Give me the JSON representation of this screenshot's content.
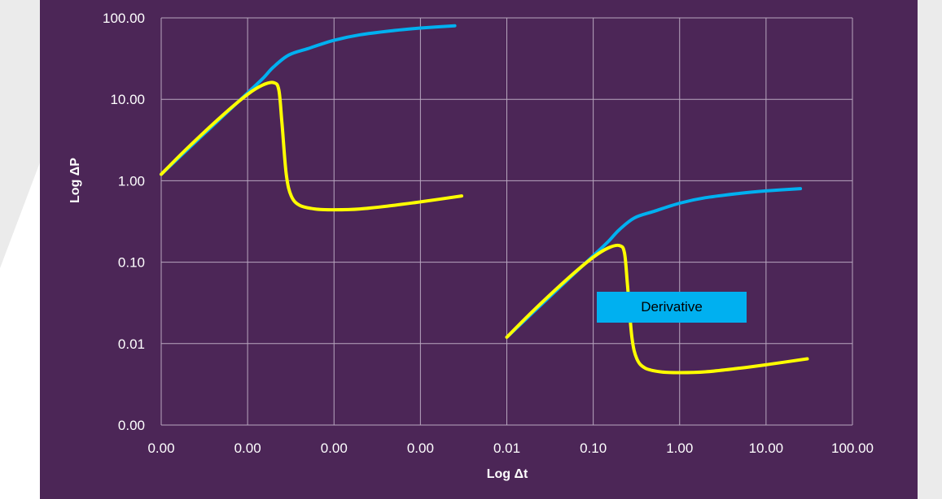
{
  "chart_data": {
    "type": "line",
    "xlabel": "Log Δt",
    "ylabel": "Log ΔP",
    "x_tick_labels": [
      "0.00",
      "0.00",
      "0.00",
      "0.00",
      "0.01",
      "0.10",
      "1.00",
      "10.00",
      "100.00"
    ],
    "y_tick_labels": [
      "100.00",
      "10.00",
      "1.00",
      "0.10",
      "0.01",
      "0.00"
    ],
    "x_scale": "log",
    "y_scale": "log",
    "grid": true,
    "annotation": "Derivative",
    "colors": {
      "background": "#4c2657",
      "pressure": "#00b0f0",
      "derivative": "#ffff00",
      "grid": "#b8a6bf"
    },
    "series": [
      {
        "key": "pressure_1",
        "color": "#00b0f0",
        "x": [
          0.01,
          0.02,
          0.05,
          0.1,
          0.15,
          0.2,
          0.3,
          0.5,
          1,
          2,
          5,
          10,
          25
        ],
        "y": [
          0.012,
          0.024,
          0.06,
          0.12,
          0.18,
          0.25,
          0.35,
          0.42,
          0.53,
          0.62,
          0.7,
          0.75,
          0.8
        ]
      },
      {
        "key": "derivative_1",
        "color": "#ffff00",
        "x": [
          0.01,
          0.02,
          0.05,
          0.1,
          0.15,
          0.2,
          0.23,
          0.25,
          0.28,
          0.32,
          0.4,
          0.6,
          1,
          2,
          5,
          10,
          30
        ],
        "y": [
          0.012,
          0.025,
          0.062,
          0.115,
          0.15,
          0.16,
          0.13,
          0.05,
          0.012,
          0.0065,
          0.005,
          0.0045,
          0.0044,
          0.0045,
          0.005,
          0.0055,
          0.0065
        ]
      }
    ]
  }
}
